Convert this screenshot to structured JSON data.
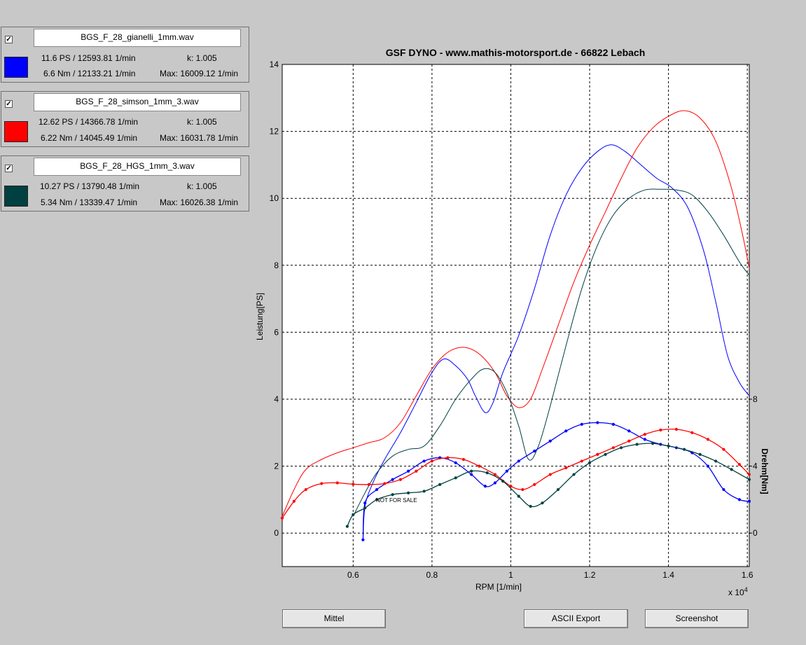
{
  "runs": [
    {
      "checked": true,
      "file": "BGS_F_28_gianelli_1mm.wav",
      "color": "#0000ff",
      "power": "11.6 PS / 12593.81 1/min",
      "k": "k: 1.005",
      "torque": "6.6 Nm / 12133.21 1/min",
      "max": "Max: 16009.12 1/min"
    },
    {
      "checked": true,
      "file": "BGS_F_28_simson_1mm_3.wav",
      "color": "#ff0000",
      "power": "12.62 PS / 14366.78 1/min",
      "k": "k: 1.005",
      "torque": "6.22 Nm / 14045.49 1/min",
      "max": "Max: 16031.78 1/min"
    },
    {
      "checked": true,
      "file": "BGS_F_28_HGS_1mm_3.wav",
      "color": "#004040",
      "power": "10.27 PS / 13790.48 1/min",
      "k": "k: 1.005",
      "torque": "5.34 Nm / 13339.47 1/min",
      "max": "Max: 16026.38 1/min"
    }
  ],
  "buttons": {
    "mittel": "Mittel",
    "ascii": "ASCII Export",
    "screenshot": "Screenshot"
  },
  "chart_data": {
    "type": "line",
    "title": "GSF DYNO - www.mathis-motorsport.de - 66822 Lebach",
    "xlabel": "RPM [1/min]",
    "x_multiplier": "x 10",
    "x_multiplier_exp": "4",
    "ylabel": "Leistung[PS]",
    "y2label": "Drehm[Nm]",
    "watermark": "NOT FOR SALE",
    "xlim": [
      0.42,
      1.605
    ],
    "ylim": [
      -1,
      14
    ],
    "y2lim": [
      -2,
      28
    ],
    "grid": true,
    "x_ticks": [
      "0.6",
      "0.8",
      "1",
      "1.2",
      "1.4",
      "1.6"
    ],
    "y_ticks": [
      "0",
      "2",
      "4",
      "6",
      "8",
      "10",
      "12",
      "14"
    ],
    "y2_ticks": [
      "0",
      "4",
      "8"
    ],
    "power_series": [
      {
        "color": "#0000ff",
        "points": [
          [
            0.625,
            -0.2
          ],
          [
            0.63,
            0.8
          ],
          [
            0.65,
            1.5
          ],
          [
            0.68,
            2.2
          ],
          [
            0.72,
            3.0
          ],
          [
            0.76,
            3.9
          ],
          [
            0.8,
            4.8
          ],
          [
            0.83,
            5.2
          ],
          [
            0.86,
            5.0
          ],
          [
            0.89,
            4.6
          ],
          [
            0.91,
            4.1
          ],
          [
            0.935,
            3.6
          ],
          [
            0.955,
            3.9
          ],
          [
            0.98,
            4.8
          ],
          [
            1.02,
            5.9
          ],
          [
            1.06,
            7.3
          ],
          [
            1.1,
            8.9
          ],
          [
            1.14,
            10.1
          ],
          [
            1.18,
            10.9
          ],
          [
            1.22,
            11.4
          ],
          [
            1.255,
            11.6
          ],
          [
            1.29,
            11.4
          ],
          [
            1.33,
            11.0
          ],
          [
            1.37,
            10.6
          ],
          [
            1.41,
            10.3
          ],
          [
            1.45,
            9.7
          ],
          [
            1.49,
            8.4
          ],
          [
            1.52,
            6.9
          ],
          [
            1.55,
            5.3
          ],
          [
            1.58,
            4.5
          ],
          [
            1.605,
            4.1
          ]
        ]
      },
      {
        "color": "#ff0000",
        "points": [
          [
            0.42,
            0.5
          ],
          [
            0.45,
            1.3
          ],
          [
            0.48,
            1.9
          ],
          [
            0.52,
            2.2
          ],
          [
            0.56,
            2.4
          ],
          [
            0.6,
            2.55
          ],
          [
            0.64,
            2.7
          ],
          [
            0.68,
            2.85
          ],
          [
            0.72,
            3.3
          ],
          [
            0.76,
            4.1
          ],
          [
            0.8,
            4.9
          ],
          [
            0.84,
            5.4
          ],
          [
            0.88,
            5.55
          ],
          [
            0.92,
            5.35
          ],
          [
            0.96,
            4.8
          ],
          [
            0.99,
            4.1
          ],
          [
            1.02,
            3.75
          ],
          [
            1.05,
            4.0
          ],
          [
            1.08,
            4.9
          ],
          [
            1.12,
            6.2
          ],
          [
            1.16,
            7.5
          ],
          [
            1.2,
            8.6
          ],
          [
            1.24,
            9.6
          ],
          [
            1.28,
            10.6
          ],
          [
            1.32,
            11.5
          ],
          [
            1.36,
            12.1
          ],
          [
            1.4,
            12.45
          ],
          [
            1.44,
            12.62
          ],
          [
            1.48,
            12.4
          ],
          [
            1.52,
            11.7
          ],
          [
            1.56,
            10.3
          ],
          [
            1.59,
            8.8
          ],
          [
            1.605,
            7.9
          ]
        ]
      },
      {
        "color": "#004040",
        "points": [
          [
            0.6,
            0.5
          ],
          [
            0.63,
            1.2
          ],
          [
            0.66,
            1.8
          ],
          [
            0.7,
            2.3
          ],
          [
            0.74,
            2.5
          ],
          [
            0.78,
            2.6
          ],
          [
            0.82,
            3.2
          ],
          [
            0.86,
            4.0
          ],
          [
            0.9,
            4.6
          ],
          [
            0.93,
            4.9
          ],
          [
            0.96,
            4.8
          ],
          [
            0.99,
            4.2
          ],
          [
            1.02,
            3.2
          ],
          [
            1.045,
            2.2
          ],
          [
            1.07,
            2.6
          ],
          [
            1.1,
            3.8
          ],
          [
            1.14,
            5.6
          ],
          [
            1.18,
            7.3
          ],
          [
            1.22,
            8.6
          ],
          [
            1.26,
            9.5
          ],
          [
            1.3,
            10.0
          ],
          [
            1.34,
            10.25
          ],
          [
            1.38,
            10.27
          ],
          [
            1.42,
            10.25
          ],
          [
            1.46,
            10.1
          ],
          [
            1.5,
            9.6
          ],
          [
            1.54,
            8.9
          ],
          [
            1.58,
            8.1
          ],
          [
            1.605,
            7.7
          ]
        ]
      }
    ],
    "torque_series": [
      {
        "color": "#0000ff",
        "points": [
          [
            0.625,
            -0.2
          ],
          [
            0.63,
            0.9
          ],
          [
            0.66,
            1.3
          ],
          [
            0.7,
            1.6
          ],
          [
            0.74,
            1.85
          ],
          [
            0.78,
            2.15
          ],
          [
            0.82,
            2.25
          ],
          [
            0.86,
            2.1
          ],
          [
            0.9,
            1.75
          ],
          [
            0.935,
            1.4
          ],
          [
            0.96,
            1.5
          ],
          [
            0.99,
            1.85
          ],
          [
            1.02,
            2.15
          ],
          [
            1.06,
            2.45
          ],
          [
            1.1,
            2.75
          ],
          [
            1.14,
            3.05
          ],
          [
            1.18,
            3.25
          ],
          [
            1.22,
            3.3
          ],
          [
            1.26,
            3.25
          ],
          [
            1.3,
            3.05
          ],
          [
            1.34,
            2.8
          ],
          [
            1.38,
            2.65
          ],
          [
            1.42,
            2.55
          ],
          [
            1.46,
            2.4
          ],
          [
            1.5,
            2.0
          ],
          [
            1.54,
            1.3
          ],
          [
            1.58,
            1.0
          ],
          [
            1.605,
            0.95
          ]
        ]
      },
      {
        "color": "#ff0000",
        "points": [
          [
            0.42,
            0.45
          ],
          [
            0.45,
            0.95
          ],
          [
            0.48,
            1.3
          ],
          [
            0.52,
            1.48
          ],
          [
            0.56,
            1.5
          ],
          [
            0.6,
            1.46
          ],
          [
            0.64,
            1.45
          ],
          [
            0.68,
            1.48
          ],
          [
            0.72,
            1.6
          ],
          [
            0.76,
            1.85
          ],
          [
            0.8,
            2.15
          ],
          [
            0.84,
            2.25
          ],
          [
            0.88,
            2.2
          ],
          [
            0.92,
            2.0
          ],
          [
            0.96,
            1.75
          ],
          [
            1.0,
            1.4
          ],
          [
            1.03,
            1.3
          ],
          [
            1.06,
            1.45
          ],
          [
            1.1,
            1.75
          ],
          [
            1.14,
            1.95
          ],
          [
            1.18,
            2.15
          ],
          [
            1.22,
            2.35
          ],
          [
            1.26,
            2.55
          ],
          [
            1.3,
            2.75
          ],
          [
            1.34,
            2.95
          ],
          [
            1.38,
            3.08
          ],
          [
            1.42,
            3.1
          ],
          [
            1.46,
            3.0
          ],
          [
            1.5,
            2.8
          ],
          [
            1.54,
            2.5
          ],
          [
            1.58,
            2.05
          ],
          [
            1.605,
            1.75
          ]
        ]
      },
      {
        "color": "#004040",
        "points": [
          [
            0.585,
            0.2
          ],
          [
            0.6,
            0.55
          ],
          [
            0.63,
            0.75
          ],
          [
            0.66,
            1.0
          ],
          [
            0.7,
            1.15
          ],
          [
            0.74,
            1.2
          ],
          [
            0.78,
            1.25
          ],
          [
            0.82,
            1.45
          ],
          [
            0.86,
            1.65
          ],
          [
            0.9,
            1.85
          ],
          [
            0.94,
            1.8
          ],
          [
            0.98,
            1.55
          ],
          [
            1.02,
            1.1
          ],
          [
            1.05,
            0.8
          ],
          [
            1.08,
            0.9
          ],
          [
            1.12,
            1.3
          ],
          [
            1.16,
            1.75
          ],
          [
            1.2,
            2.1
          ],
          [
            1.24,
            2.35
          ],
          [
            1.28,
            2.55
          ],
          [
            1.32,
            2.65
          ],
          [
            1.36,
            2.68
          ],
          [
            1.4,
            2.6
          ],
          [
            1.44,
            2.5
          ],
          [
            1.48,
            2.35
          ],
          [
            1.52,
            2.15
          ],
          [
            1.56,
            1.9
          ],
          [
            1.605,
            1.6
          ]
        ]
      }
    ]
  }
}
